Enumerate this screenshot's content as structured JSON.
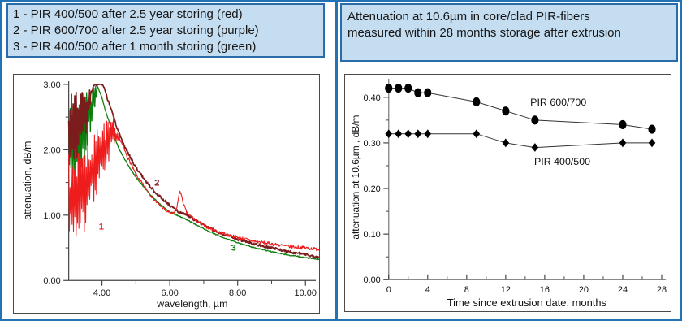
{
  "page": {
    "border_color": "#2273b5",
    "header_fill": "#c4ddf1",
    "header_border": "#2a6ca9"
  },
  "left_header": {
    "lines": [
      "1 - PIR 400/500 after 2.5 year storing (red)",
      "2 - PIR 600/700 after 2.5 year storing (purple)",
      "3 - PIR 400/500 after 1 month storing (green)"
    ]
  },
  "right_header": {
    "lines": [
      "Attenuation at 10.6µm in core/clad PIR-fibers",
      "measured within 28 months storage after extrusion"
    ]
  },
  "chart_data": [
    {
      "type": "line",
      "title": "",
      "xlabel": "wavelength, µm",
      "ylabel": "attenuation, dB/m",
      "xlim": [
        3.02,
        10.45
      ],
      "ylim": [
        0,
        3.0
      ],
      "grid": false,
      "x_ticks_major": [
        4,
        6,
        8,
        10
      ],
      "x_tick_labels": [
        "4.00",
        "6.00",
        "8.00",
        "10.00"
      ],
      "x_ticks_minor": [
        5,
        7,
        9
      ],
      "y_ticks_major": [
        0,
        1,
        2,
        3
      ],
      "y_tick_labels": [
        "0.00",
        "1.00",
        "2.00",
        "3.00"
      ],
      "y_ticks_minor": [
        0.5,
        1.5,
        2.5
      ],
      "series": [
        {
          "name": "3",
          "desc": "PIR 400/500 after 1 month storing",
          "color": "#0c7e0c",
          "width": 1.3,
          "jitter": 0.008,
          "seed": 5,
          "label": "3",
          "label_pos": [
            7.88,
            0.46
          ],
          "noise": {
            "x0": 3.02,
            "x1": 3.86,
            "step": 0.022,
            "lo": [
              [
                3.02,
                1.45
              ],
              [
                3.2,
                1.33
              ],
              [
                3.4,
                1.6
              ],
              [
                3.6,
                2.1
              ],
              [
                3.75,
                2.5
              ],
              [
                3.86,
                2.78
              ]
            ],
            "hi": [
              [
                3.02,
                2.6
              ],
              [
                3.1,
                2.9
              ],
              [
                3.2,
                3.0
              ],
              [
                3.86,
                3.0
              ]
            ]
          },
          "anchors": [
            [
              3.86,
              2.98
            ],
            [
              4.0,
              2.8
            ],
            [
              4.1,
              2.6
            ],
            [
              4.2,
              2.45
            ],
            [
              4.35,
              2.2
            ],
            [
              4.5,
              2.02
            ],
            [
              4.75,
              1.78
            ],
            [
              5.0,
              1.58
            ],
            [
              5.25,
              1.42
            ],
            [
              5.5,
              1.27
            ],
            [
              5.75,
              1.15
            ],
            [
              6.0,
              1.05
            ],
            [
              6.25,
              0.99
            ],
            [
              6.5,
              0.93
            ],
            [
              6.75,
              0.86
            ],
            [
              7.0,
              0.79
            ],
            [
              7.25,
              0.73
            ],
            [
              7.5,
              0.67
            ],
            [
              8.0,
              0.58
            ],
            [
              8.5,
              0.5
            ],
            [
              9.0,
              0.44
            ],
            [
              9.5,
              0.39
            ],
            [
              10.0,
              0.35
            ],
            [
              10.4,
              0.32
            ]
          ]
        },
        {
          "name": "2",
          "desc": "PIR 600/700 after 2.5 year storing",
          "color": "#7c1d1d",
          "width": 1.7,
          "jitter": 0.02,
          "seed": 3,
          "label": "2",
          "label_pos": [
            5.62,
            1.45
          ],
          "noise": {
            "x0": 3.02,
            "x1": 3.66,
            "step": 0.022,
            "lo": [
              [
                3.02,
                1.9
              ],
              [
                3.2,
                1.78
              ],
              [
                3.4,
                2.0
              ],
              [
                3.55,
                2.3
              ],
              [
                3.66,
                2.6
              ]
            ],
            "hi": [
              [
                3.02,
                2.7
              ],
              [
                3.15,
                2.95
              ],
              [
                3.3,
                3.0
              ],
              [
                3.66,
                3.0
              ]
            ]
          },
          "anchors": [
            [
              3.66,
              2.85
            ],
            [
              3.75,
              2.97
            ],
            [
              3.85,
              3.0
            ],
            [
              4.0,
              3.0
            ],
            [
              4.05,
              2.96
            ],
            [
              4.15,
              2.8
            ],
            [
              4.3,
              2.58
            ],
            [
              4.45,
              2.32
            ],
            [
              4.6,
              2.12
            ],
            [
              4.8,
              1.92
            ],
            [
              5.0,
              1.73
            ],
            [
              5.25,
              1.55
            ],
            [
              5.5,
              1.39
            ],
            [
              5.75,
              1.26
            ],
            [
              6.0,
              1.15
            ],
            [
              6.25,
              1.05
            ],
            [
              6.5,
              1.0
            ],
            [
              6.75,
              0.92
            ],
            [
              7.0,
              0.85
            ],
            [
              7.25,
              0.78
            ],
            [
              7.5,
              0.72
            ],
            [
              8.0,
              0.63
            ],
            [
              8.5,
              0.56
            ],
            [
              9.0,
              0.5
            ],
            [
              9.5,
              0.44
            ],
            [
              10.0,
              0.4
            ],
            [
              10.4,
              0.345
            ]
          ]
        },
        {
          "name": "1",
          "desc": "PIR 400/500 after 2.5 year storing",
          "color": "#ee1c1c",
          "width": 1.1,
          "jitter": 0.025,
          "seed": 7,
          "label": "1",
          "label_pos": [
            3.98,
            0.78
          ],
          "noise": {
            "x0": 3.02,
            "x1": 4.5,
            "step": 0.02,
            "lo": [
              [
                3.02,
                0.75
              ],
              [
                3.2,
                0.6
              ],
              [
                3.45,
                0.62
              ],
              [
                3.7,
                1.1
              ],
              [
                4.0,
                1.55
              ],
              [
                4.3,
                1.95
              ],
              [
                4.5,
                2.1
              ]
            ],
            "hi": [
              [
                3.02,
                1.95
              ],
              [
                3.25,
                2.1
              ],
              [
                3.5,
                2.0
              ],
              [
                3.75,
                2.3
              ],
              [
                4.0,
                2.4
              ],
              [
                4.3,
                2.62
              ],
              [
                4.5,
                2.25
              ]
            ]
          },
          "anchors": [
            [
              4.5,
              2.2
            ],
            [
              4.7,
              1.95
            ],
            [
              5.0,
              1.62
            ],
            [
              5.3,
              1.4
            ],
            [
              5.6,
              1.2
            ],
            [
              5.9,
              1.06
            ],
            [
              6.1,
              1.02
            ],
            [
              6.2,
              1.1
            ],
            [
              6.3,
              1.38
            ],
            [
              6.4,
              1.18
            ],
            [
              6.5,
              1.03
            ],
            [
              6.7,
              0.95
            ],
            [
              7.0,
              0.84
            ],
            [
              7.5,
              0.73
            ],
            [
              8.0,
              0.66
            ],
            [
              8.5,
              0.6
            ],
            [
              9.0,
              0.56
            ],
            [
              9.5,
              0.52
            ],
            [
              10.0,
              0.5
            ],
            [
              10.4,
              0.475
            ]
          ]
        }
      ]
    },
    {
      "type": "scatter",
      "title": "",
      "xlabel": "Time since extrusion date, months",
      "ylabel": "attenuation at 10.6µm , dB/m",
      "xlim": [
        0,
        28.5
      ],
      "ylim": [
        0,
        0.44
      ],
      "grid": false,
      "x": [
        0,
        1,
        2,
        3,
        4,
        9,
        12,
        15,
        24,
        27
      ],
      "x_ticks_major": [
        0,
        4,
        8,
        12,
        16,
        20,
        24,
        28
      ],
      "x_tick_labels": [
        "0",
        "4",
        "8",
        "12",
        "16",
        "20",
        "24",
        "28"
      ],
      "x_ticks_minor": [
        2,
        6,
        10,
        14,
        18,
        22,
        26
      ],
      "y_ticks_major": [
        0,
        0.1,
        0.2,
        0.3,
        0.4
      ],
      "y_tick_labels": [
        "0.00",
        "0.10",
        "0.20",
        "0.30",
        "0.40"
      ],
      "y_ticks_minor": [
        0.05,
        0.15,
        0.25,
        0.35
      ],
      "series": [
        {
          "name": "PIR 600/700",
          "marker": "ellipse",
          "values": [
            0.42,
            0.42,
            0.42,
            0.41,
            0.41,
            0.39,
            0.37,
            0.35,
            0.34,
            0.33
          ],
          "label_pos": [
            17.4,
            0.382
          ]
        },
        {
          "name": "PIR 400/500",
          "marker": "diamond",
          "values": [
            0.32,
            0.32,
            0.32,
            0.32,
            0.32,
            0.32,
            0.3,
            0.29,
            0.3,
            0.3
          ],
          "label_pos": [
            17.8,
            0.252
          ]
        }
      ]
    }
  ]
}
